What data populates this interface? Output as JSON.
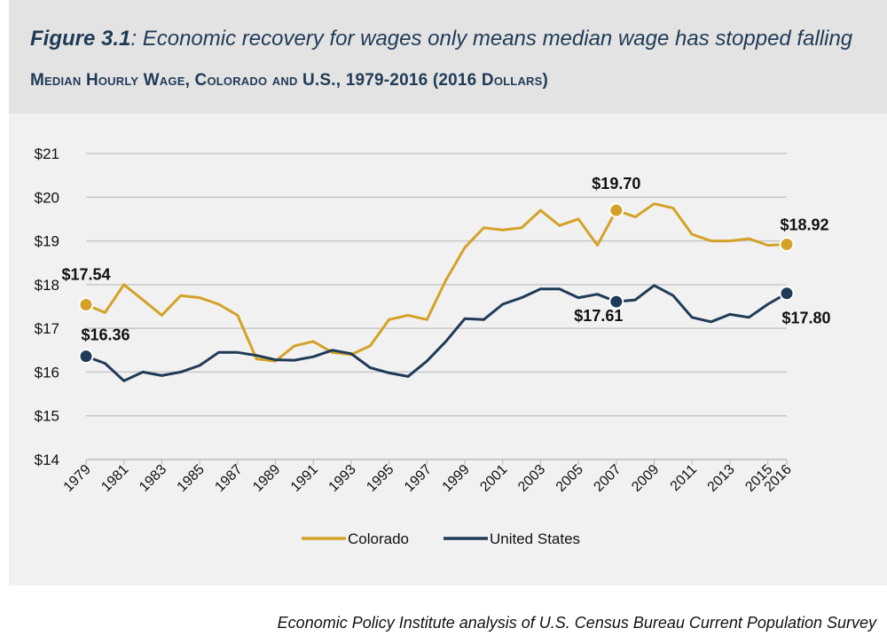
{
  "header": {
    "title_bold": "Figure 3.1",
    "title_rest": ": Economic recovery for wages only means median wage has stopped falling",
    "subtitle": "Median Hourly Wage, Colorado and U.S., 1979-2016 (2016 Dollars)"
  },
  "source": "Economic Policy Institute analysis of U.S. Census Bureau Current Population Survey",
  "colors": {
    "colorado": "#d4a227",
    "us": "#1f3b57",
    "grid": "#c8c8c8"
  },
  "chart_data": {
    "type": "line",
    "title": "Median Hourly Wage, Colorado and U.S., 1979-2016 (2016 Dollars)",
    "xlabel": "",
    "ylabel": "",
    "ylim": [
      14,
      21
    ],
    "y_ticks": [
      14,
      15,
      16,
      17,
      18,
      19,
      20,
      21
    ],
    "y_tick_labels": [
      "$14",
      "$15",
      "$16",
      "$17",
      "$18",
      "$19",
      "$20",
      "$21"
    ],
    "x_tick_labels": [
      "1979",
      "1981",
      "1983",
      "1985",
      "1987",
      "1989",
      "1991",
      "1993",
      "1995",
      "1997",
      "1999",
      "2001",
      "2003",
      "2005",
      "2007",
      "2009",
      "2011",
      "2013",
      "2015",
      "2016"
    ],
    "grid": "horizontal",
    "legend_position": "bottom-center",
    "x": [
      1979,
      1980,
      1981,
      1982,
      1983,
      1984,
      1985,
      1986,
      1987,
      1988,
      1989,
      1990,
      1991,
      1992,
      1993,
      1994,
      1995,
      1996,
      1997,
      1998,
      1999,
      2000,
      2001,
      2002,
      2003,
      2004,
      2005,
      2006,
      2007,
      2008,
      2009,
      2010,
      2011,
      2012,
      2013,
      2014,
      2015,
      2016
    ],
    "series": [
      {
        "name": "Colorado",
        "values": [
          17.54,
          17.36,
          18.0,
          17.65,
          17.3,
          17.75,
          17.7,
          17.55,
          17.3,
          16.3,
          16.25,
          16.6,
          16.7,
          16.45,
          16.4,
          16.6,
          17.2,
          17.3,
          17.2,
          18.1,
          18.85,
          19.3,
          19.25,
          19.3,
          19.7,
          19.35,
          19.5,
          18.9,
          19.7,
          19.55,
          19.85,
          19.75,
          19.15,
          19.0,
          19.0,
          19.05,
          18.9,
          18.92
        ]
      },
      {
        "name": "United States",
        "values": [
          16.36,
          16.2,
          15.8,
          16.0,
          15.92,
          16.0,
          16.15,
          16.45,
          16.45,
          16.38,
          16.28,
          16.27,
          16.35,
          16.5,
          16.42,
          16.1,
          15.98,
          15.9,
          16.25,
          16.7,
          17.22,
          17.2,
          17.55,
          17.7,
          17.9,
          17.9,
          17.7,
          17.78,
          17.61,
          17.65,
          17.98,
          17.75,
          17.25,
          17.15,
          17.32,
          17.25,
          17.55,
          17.8
        ]
      }
    ],
    "annotations": [
      {
        "series": "Colorado",
        "x": 1979,
        "label": "$17.54"
      },
      {
        "series": "Colorado",
        "x": 2007,
        "label": "$19.70"
      },
      {
        "series": "Colorado",
        "x": 2016,
        "label": "$18.92"
      },
      {
        "series": "United States",
        "x": 1979,
        "label": "$16.36"
      },
      {
        "series": "United States",
        "x": 2007,
        "label": "$17.61"
      },
      {
        "series": "United States",
        "x": 2016,
        "label": "$17.80"
      }
    ]
  }
}
